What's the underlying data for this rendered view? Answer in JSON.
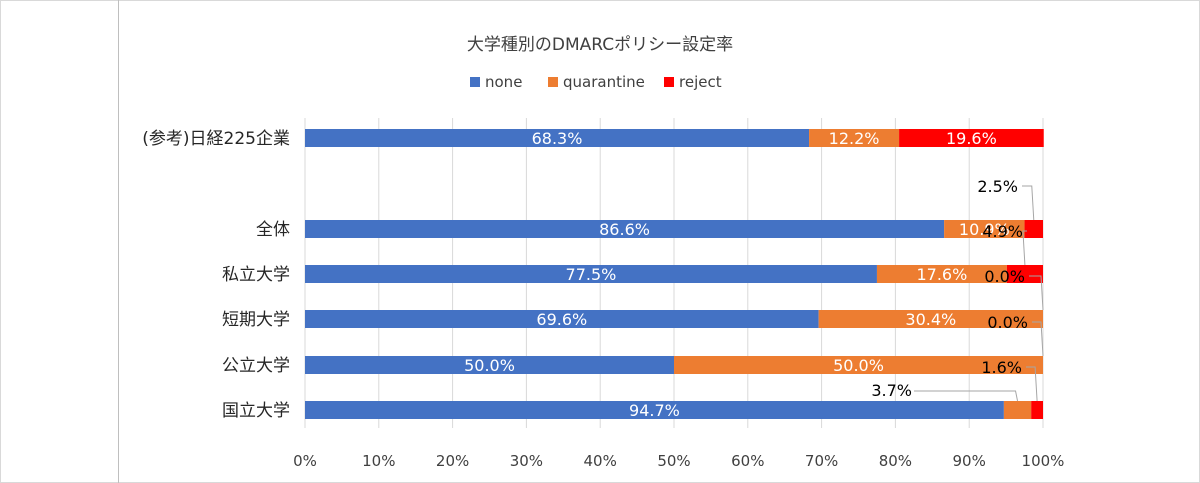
{
  "chart_data": {
    "type": "bar",
    "orientation": "horizontal",
    "stacked": "percent",
    "title": "大学種別のDMARCポリシー設定率",
    "legend_position": "top",
    "categories": [
      "(参考)日経225企業",
      "全体",
      "私立大学",
      "短期大学",
      "公立大学",
      "国立大学"
    ],
    "series": [
      {
        "name": "none",
        "color": "#4472c4",
        "values": [
          68.3,
          86.6,
          77.5,
          69.6,
          50.0,
          94.7
        ],
        "labels": [
          "68.3%",
          "86.6%",
          "77.5%",
          "69.6%",
          "50.0%",
          "94.7%"
        ]
      },
      {
        "name": "quarantine",
        "color": "#ed7d31",
        "values": [
          12.2,
          10.9,
          17.6,
          30.4,
          50.0,
          3.7
        ],
        "labels": [
          "12.2%",
          "10.9%",
          "17.6%",
          "30.4%",
          "50.0%",
          "3.7%"
        ]
      },
      {
        "name": "reject",
        "color": "#ff0000",
        "values": [
          19.6,
          2.5,
          4.9,
          0.0,
          0.0,
          1.6
        ],
        "labels": [
          "19.6%",
          "2.5%",
          "4.9%",
          "0.0%",
          "0.0%",
          "1.6%"
        ]
      }
    ],
    "xlim": [
      0,
      100
    ],
    "xticks": [
      "0%",
      "10%",
      "20%",
      "30%",
      "40%",
      "50%",
      "60%",
      "70%",
      "80%",
      "90%",
      "100%"
    ],
    "grid": true
  }
}
